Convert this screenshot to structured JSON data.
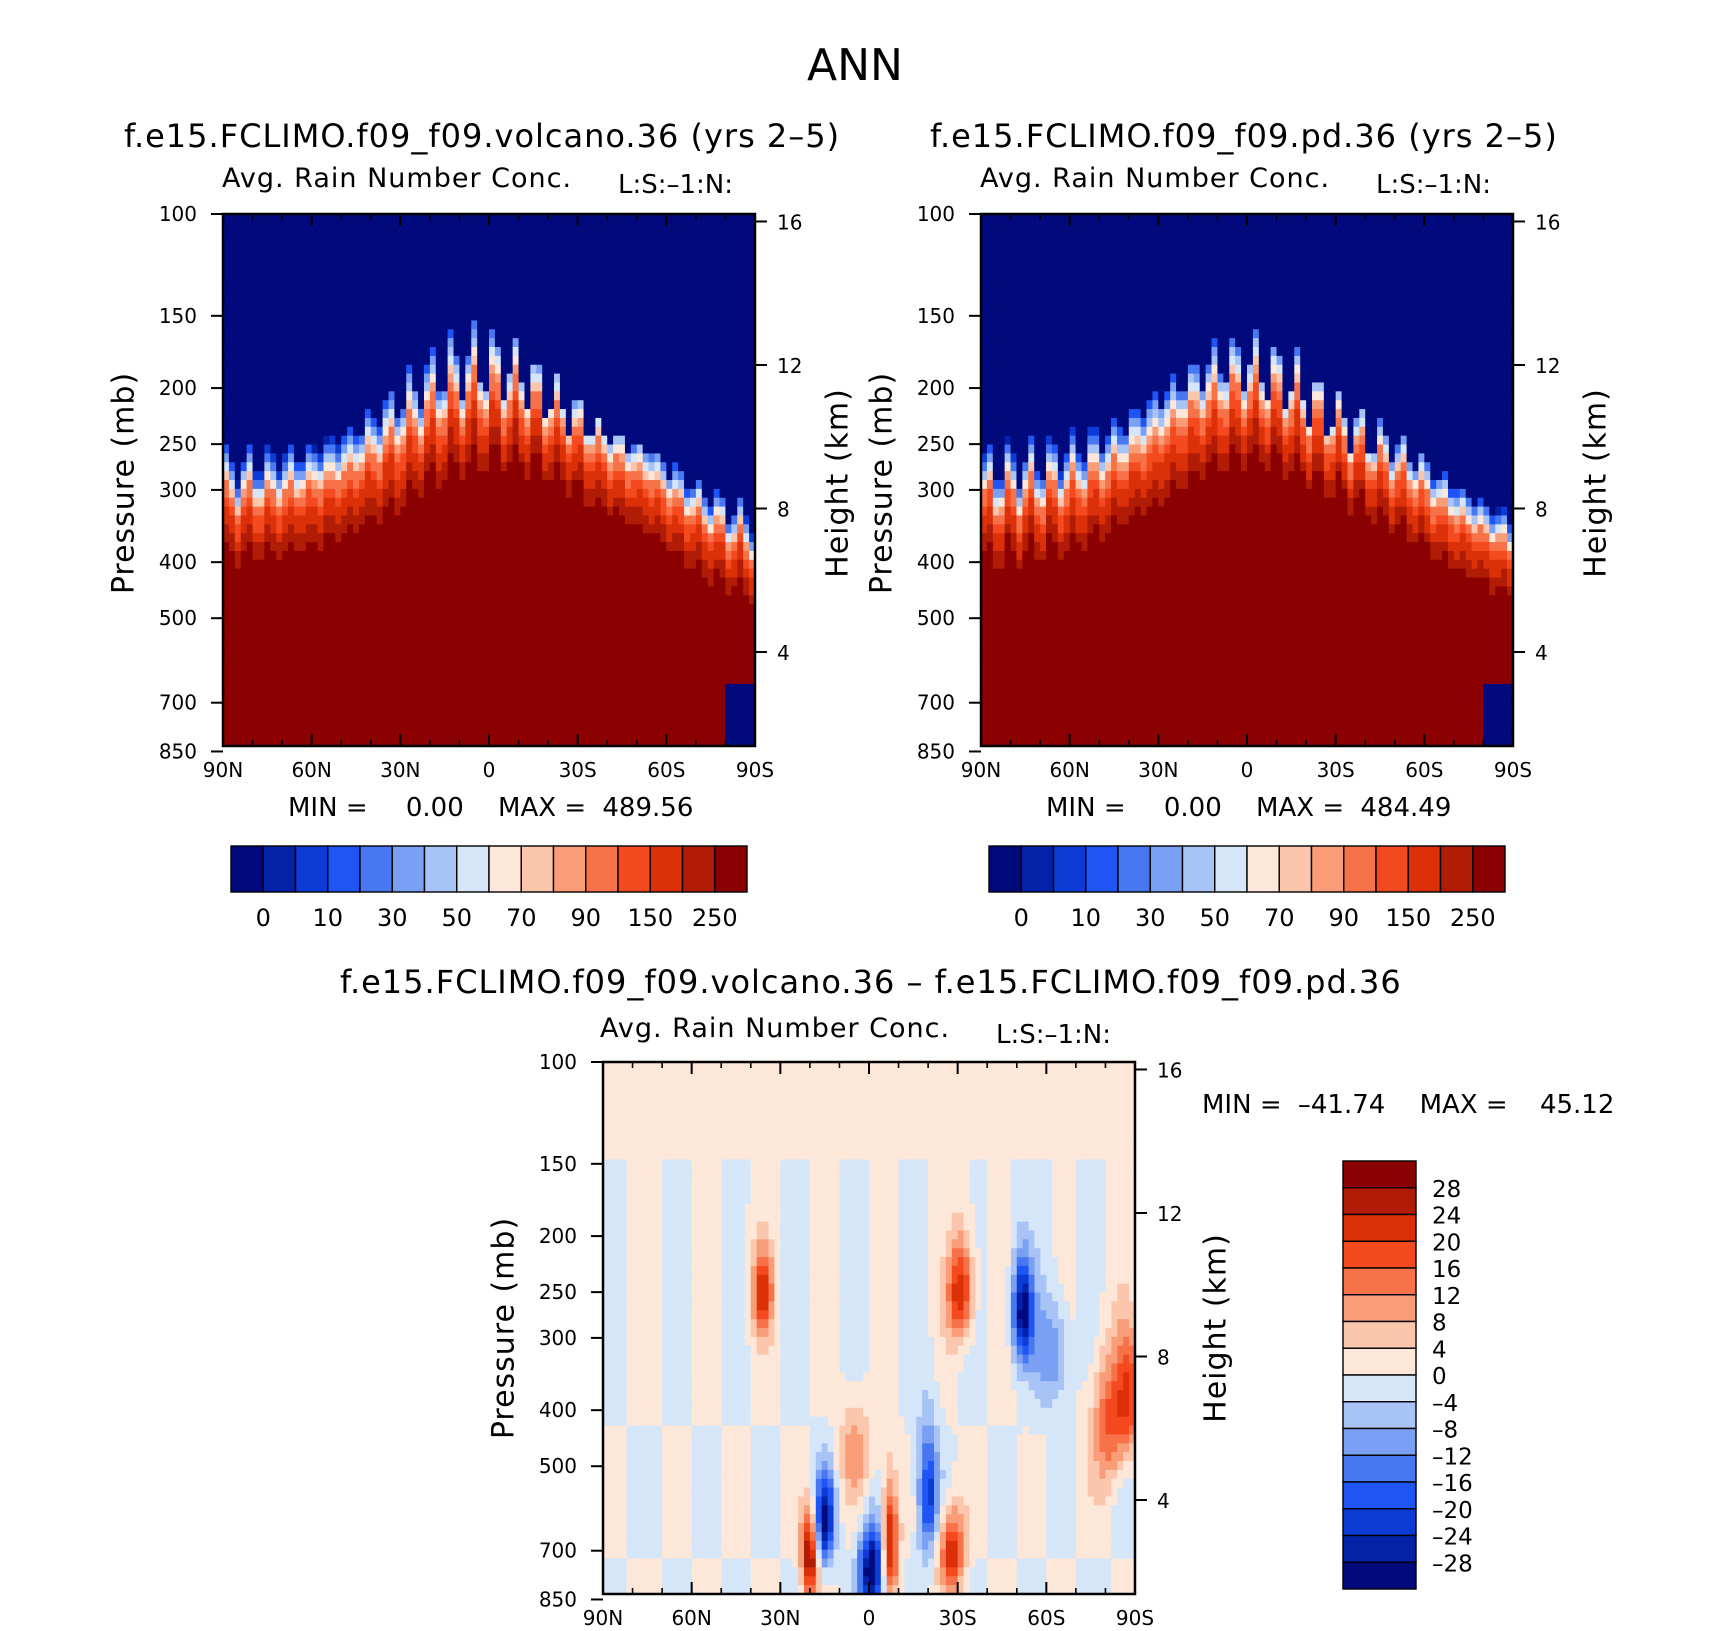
{
  "chart_data": [
    {
      "type": "heatmap",
      "panel": "top-left",
      "page_title": "ANN",
      "title": "f.e15.FCLIMO.f09_f09.volcano.36 (yrs 2–5)",
      "subtitle_left": "Avg. Rain Number Conc.",
      "subtitle_right": "L:S:–1:N:",
      "ylabel": "Pressure (mb)",
      "ylabel_right": "Height (km)",
      "x_ticks": [
        "90N",
        "60N",
        "30N",
        "0",
        "30S",
        "60S",
        "90S"
      ],
      "y_ticks": [
        "100",
        "150",
        "200",
        "250",
        "300",
        "400",
        "500",
        "700",
        "850"
      ],
      "y_ticks_right": [
        "16",
        "12",
        "8",
        "4"
      ],
      "min_label": "MIN =",
      "min_value": "0.00",
      "max_label": "MAX =",
      "max_value": "489.56",
      "colorbar_colors": [
        "#000a7d",
        "#0322a8",
        "#0d3bd6",
        "#1f54f5",
        "#4877f2",
        "#7aa0f3",
        "#a8c3f6",
        "#d6e6f9",
        "#fde7d9",
        "#fbc6ac",
        "#f99d78",
        "#f87249",
        "#f54a1f",
        "#dc3008",
        "#b01c06",
        "#8b0000"
      ],
      "colorbar_labels": [
        "0",
        "10",
        "30",
        "50",
        "70",
        "90",
        "150",
        "250"
      ]
    },
    {
      "type": "heatmap",
      "panel": "top-right",
      "title": "f.e15.FCLIMO.f09_f09.pd.36 (yrs 2–5)",
      "subtitle_left": "Avg. Rain Number Conc.",
      "subtitle_right": "L:S:–1:N:",
      "ylabel": "Pressure (mb)",
      "ylabel_right": "Height (km)",
      "x_ticks": [
        "90N",
        "60N",
        "30N",
        "0",
        "30S",
        "60S",
        "90S"
      ],
      "y_ticks": [
        "100",
        "150",
        "200",
        "250",
        "300",
        "400",
        "500",
        "700",
        "850"
      ],
      "y_ticks_right": [
        "16",
        "12",
        "8",
        "4"
      ],
      "min_label": "MIN =",
      "min_value": "0.00",
      "max_label": "MAX =",
      "max_value": "484.49",
      "colorbar_colors": [
        "#000a7d",
        "#0322a8",
        "#0d3bd6",
        "#1f54f5",
        "#4877f2",
        "#7aa0f3",
        "#a8c3f6",
        "#d6e6f9",
        "#fde7d9",
        "#fbc6ac",
        "#f99d78",
        "#f87249",
        "#f54a1f",
        "#dc3008",
        "#b01c06",
        "#8b0000"
      ],
      "colorbar_labels": [
        "0",
        "10",
        "30",
        "50",
        "70",
        "90",
        "150",
        "250"
      ]
    },
    {
      "type": "heatmap",
      "panel": "bottom",
      "title": "f.e15.FCLIMO.f09_f09.volcano.36 – f.e15.FCLIMO.f09_f09.pd.36",
      "subtitle_left": "Avg. Rain Number Conc.",
      "subtitle_right": "L:S:–1:N:",
      "ylabel": "Pressure (mb)",
      "ylabel_right": "Height (km)",
      "x_ticks": [
        "90N",
        "60N",
        "30N",
        "0",
        "30S",
        "60S",
        "90S"
      ],
      "y_ticks": [
        "100",
        "150",
        "200",
        "250",
        "300",
        "400",
        "500",
        "700",
        "850"
      ],
      "y_ticks_right": [
        "16",
        "12",
        "8",
        "4"
      ],
      "min_label": "MIN =",
      "min_value": "–41.74",
      "max_label": "MAX =",
      "max_value": "45.12",
      "colorbar_colors": [
        "#8b0000",
        "#b01c06",
        "#dc3008",
        "#f54a1f",
        "#f87249",
        "#f99d78",
        "#fbc6ac",
        "#fde7d9",
        "#d6e6f9",
        "#a8c3f6",
        "#7aa0f3",
        "#4877f2",
        "#1f54f5",
        "#0d3bd6",
        "#0322a8",
        "#000a7d"
      ],
      "colorbar_labels": [
        "28",
        "24",
        "20",
        "16",
        "12",
        "8",
        "4",
        "0",
        "–4",
        "–8",
        "–12",
        "–16",
        "–20",
        "–24",
        "–28"
      ]
    }
  ]
}
